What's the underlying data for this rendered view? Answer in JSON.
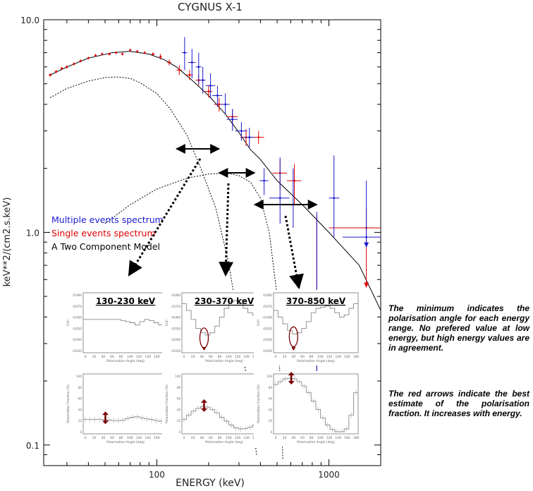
{
  "chart_data": {
    "type": "scatter",
    "title": "CYGNUS X-1",
    "xlabel": "ENERGY (keV)",
    "ylabel": "keV**2/(cm2.s.keV)",
    "xscale": "log",
    "yscale": "log",
    "xlim": [
      22,
      2000
    ],
    "ylim": [
      0.08,
      10
    ],
    "xticks": [
      {
        "value": 100,
        "label": "100"
      },
      {
        "value": 1000,
        "label": "1000"
      }
    ],
    "yticks": [
      {
        "value": 10,
        "label": "10.0"
      },
      {
        "value": 1,
        "label": "1.0"
      },
      {
        "value": 0.1,
        "label": "0.1"
      }
    ],
    "legend": [
      {
        "label": "Multiple events spectrum",
        "color": "#1a1acc"
      },
      {
        "label": "Single events spectrum",
        "color": "#dd0000"
      },
      {
        "label": "A Two Component Model",
        "color": "#000000"
      }
    ],
    "series": [
      {
        "key": "model_total",
        "kind": "line",
        "style": "solid",
        "color": "#000000",
        "x": [
          24,
          30,
          40,
          55,
          70,
          90,
          110,
          130,
          160,
          200,
          250,
          300,
          350,
          400,
          500,
          700,
          1000,
          1500,
          2000
        ],
        "y": [
          5.5,
          6.0,
          6.6,
          7.0,
          7.1,
          6.9,
          6.5,
          6.0,
          5.2,
          4.4,
          3.6,
          2.95,
          2.45,
          2.2,
          1.75,
          1.35,
          1.0,
          0.7,
          0.43
        ]
      },
      {
        "key": "model_comp_1",
        "kind": "line",
        "style": "dotted",
        "color": "#000000",
        "x": [
          24,
          30,
          40,
          50,
          60,
          70,
          80,
          100,
          120,
          150,
          180,
          220,
          260,
          300,
          340,
          380
        ],
        "y": [
          4.3,
          4.75,
          5.15,
          5.35,
          5.38,
          5.3,
          5.05,
          4.5,
          3.8,
          2.85,
          2.0,
          1.3,
          0.73,
          0.37,
          0.18,
          0.09
        ]
      },
      {
        "key": "model_comp_2",
        "kind": "line",
        "style": "dotted",
        "color": "#000000",
        "x": [
          50,
          70,
          100,
          150,
          200,
          250,
          300,
          350,
          400,
          450,
          500,
          540
        ],
        "y": [
          1.1,
          1.35,
          1.6,
          1.8,
          1.88,
          1.9,
          1.85,
          1.72,
          1.45,
          1.0,
          0.5,
          0.085
        ]
      },
      {
        "key": "single_events",
        "kind": "errorbars",
        "color": "#dd0000",
        "points": [
          {
            "x": 24,
            "y": 5.5,
            "xlo": 23.5,
            "xhi": 24.5,
            "ylo": 5.4,
            "yhi": 5.6
          },
          {
            "x": 26,
            "y": 5.7,
            "xlo": 25.5,
            "xhi": 26.5,
            "ylo": 5.6,
            "yhi": 5.8
          },
          {
            "x": 28,
            "y": 5.9,
            "xlo": 27.5,
            "xhi": 28.5,
            "ylo": 5.8,
            "yhi": 6.0
          },
          {
            "x": 30,
            "y": 6.0,
            "xlo": 29.5,
            "xhi": 30.5,
            "ylo": 5.9,
            "yhi": 6.1
          },
          {
            "x": 33,
            "y": 6.2,
            "xlo": 32.5,
            "xhi": 33.5,
            "ylo": 6.1,
            "yhi": 6.3
          },
          {
            "x": 36,
            "y": 6.4,
            "xlo": 35.5,
            "xhi": 36.5,
            "ylo": 6.3,
            "yhi": 6.5
          },
          {
            "x": 40,
            "y": 6.6,
            "xlo": 39.5,
            "xhi": 40.5,
            "ylo": 6.5,
            "yhi": 6.7
          },
          {
            "x": 44,
            "y": 6.8,
            "xlo": 43.5,
            "xhi": 44.5,
            "ylo": 6.7,
            "yhi": 6.9
          },
          {
            "x": 48,
            "y": 6.9,
            "xlo": 47.5,
            "xhi": 48.5,
            "ylo": 6.8,
            "yhi": 7.0
          },
          {
            "x": 53,
            "y": 6.9,
            "xlo": 52,
            "xhi": 54,
            "ylo": 6.8,
            "yhi": 7.0
          },
          {
            "x": 58,
            "y": 7.0,
            "xlo": 57,
            "xhi": 59,
            "ylo": 6.9,
            "yhi": 7.1
          },
          {
            "x": 63,
            "y": 6.9,
            "xlo": 62,
            "xhi": 64,
            "ylo": 6.8,
            "yhi": 7.0
          },
          {
            "x": 70,
            "y": 7.2,
            "xlo": 69,
            "xhi": 71,
            "ylo": 7.1,
            "yhi": 7.3
          },
          {
            "x": 77,
            "y": 7.1,
            "xlo": 76,
            "xhi": 78,
            "ylo": 7.0,
            "yhi": 7.2
          },
          {
            "x": 85,
            "y": 7.0,
            "xlo": 84,
            "xhi": 86,
            "ylo": 6.9,
            "yhi": 7.1
          },
          {
            "x": 95,
            "y": 6.9,
            "xlo": 93,
            "xhi": 97,
            "ylo": 6.8,
            "yhi": 7.0
          },
          {
            "x": 105,
            "y": 6.7,
            "xlo": 103,
            "xhi": 107,
            "ylo": 6.5,
            "yhi": 6.9
          },
          {
            "x": 118,
            "y": 6.3,
            "xlo": 115,
            "xhi": 121,
            "ylo": 6.1,
            "yhi": 6.5
          },
          {
            "x": 135,
            "y": 5.8,
            "xlo": 130,
            "xhi": 140,
            "ylo": 5.5,
            "yhi": 6.1
          },
          {
            "x": 155,
            "y": 5.5,
            "xlo": 148,
            "xhi": 162,
            "ylo": 5.2,
            "yhi": 5.8
          },
          {
            "x": 175,
            "y": 5.2,
            "xlo": 168,
            "xhi": 182,
            "ylo": 4.9,
            "yhi": 5.5
          },
          {
            "x": 200,
            "y": 4.6,
            "xlo": 190,
            "xhi": 210,
            "ylo": 4.3,
            "yhi": 4.9
          },
          {
            "x": 230,
            "y": 4.0,
            "xlo": 215,
            "xhi": 245,
            "ylo": 3.7,
            "yhi": 4.3
          },
          {
            "x": 275,
            "y": 3.5,
            "xlo": 255,
            "xhi": 295,
            "ylo": 3.2,
            "yhi": 3.8
          },
          {
            "x": 330,
            "y": 2.8,
            "xlo": 305,
            "xhi": 355,
            "ylo": 2.55,
            "yhi": 3.05
          },
          {
            "x": 390,
            "y": 2.8,
            "xlo": 360,
            "xhi": 420,
            "ylo": 2.6,
            "yhi": 3.0
          },
          {
            "x": 520,
            "y": 1.9,
            "xlo": 470,
            "xhi": 570,
            "ylo": 1.6,
            "yhi": 2.2
          },
          {
            "x": 630,
            "y": 1.75,
            "xlo": 570,
            "xhi": 690,
            "ylo": 1.35,
            "yhi": 2.1
          },
          {
            "x": 850,
            "y": 0.5,
            "xlo": 720,
            "xhi": 990,
            "ylo": 0.18,
            "yhi": 1.2
          },
          {
            "x": 1650,
            "y": 1.05,
            "xlo": 1000,
            "xhi": 2000,
            "ylo": 0.55,
            "yhi": 1.3,
            "arrow": true
          }
        ]
      },
      {
        "key": "multiple_events",
        "kind": "errorbars",
        "color": "#1a1acc",
        "points": [
          {
            "x": 145,
            "y": 7.0,
            "xlo": 140,
            "xhi": 150,
            "ylo": 5.8,
            "yhi": 8.3
          },
          {
            "x": 160,
            "y": 6.3,
            "xlo": 152,
            "xhi": 168,
            "ylo": 5.3,
            "yhi": 7.3
          },
          {
            "x": 175,
            "y": 6.0,
            "xlo": 168,
            "xhi": 182,
            "ylo": 5.0,
            "yhi": 7.0
          },
          {
            "x": 185,
            "y": 5.2,
            "xlo": 178,
            "xhi": 192,
            "ylo": 4.5,
            "yhi": 6.0
          },
          {
            "x": 205,
            "y": 4.9,
            "xlo": 192,
            "xhi": 218,
            "ylo": 4.3,
            "yhi": 5.6
          },
          {
            "x": 225,
            "y": 4.4,
            "xlo": 210,
            "xhi": 240,
            "ylo": 3.9,
            "yhi": 4.9
          },
          {
            "x": 250,
            "y": 4.0,
            "xlo": 235,
            "xhi": 265,
            "ylo": 3.6,
            "yhi": 4.5
          },
          {
            "x": 275,
            "y": 3.4,
            "xlo": 255,
            "xhi": 295,
            "ylo": 3.0,
            "yhi": 3.8
          },
          {
            "x": 310,
            "y": 3.0,
            "xlo": 285,
            "xhi": 335,
            "ylo": 2.7,
            "yhi": 3.3
          },
          {
            "x": 345,
            "y": 2.8,
            "xlo": 320,
            "xhi": 370,
            "ylo": 2.5,
            "yhi": 3.1
          },
          {
            "x": 420,
            "y": 1.75,
            "xlo": 395,
            "xhi": 445,
            "ylo": 1.5,
            "yhi": 2.0
          },
          {
            "x": 520,
            "y": 1.45,
            "xlo": 450,
            "xhi": 590,
            "ylo": 1.1,
            "yhi": 2.25
          },
          {
            "x": 620,
            "y": 1.35,
            "xlo": 560,
            "xhi": 690,
            "ylo": 1.05,
            "yhi": 2.0
          },
          {
            "x": 850,
            "y": 0.5,
            "xlo": 700,
            "xhi": 1000,
            "ylo": 0.17,
            "yhi": 1.25
          },
          {
            "x": 1070,
            "y": 1.45,
            "xlo": 1000,
            "xhi": 1150,
            "ylo": 0.95,
            "yhi": 2.3
          },
          {
            "x": 1650,
            "y": 0.95,
            "xlo": 1200,
            "xhi": 2000,
            "ylo": 0.85,
            "yhi": 1.75,
            "arrow": true
          }
        ]
      }
    ],
    "energy_ranges": [
      {
        "label": "130-230 keV",
        "x": [
          130,
          230
        ]
      },
      {
        "label": "230-370 keV",
        "x": [
          230,
          370
        ]
      },
      {
        "label": "370-850 keV",
        "x": [
          370,
          850
        ]
      }
    ],
    "inset_panels": [
      {
        "row": "chi2",
        "range": "130-230 keV",
        "ylabel": "Chi²",
        "xlabel": "Polarisation Angle (deg)",
        "yticks": [
          "41080",
          "41070",
          "41060",
          "41050",
          "41040",
          "41030"
        ],
        "xticks": [
          "0",
          "20",
          "40",
          "60",
          "80",
          "100",
          "120",
          "140",
          "160",
          "180"
        ],
        "values": [
          41058,
          41058,
          41058,
          41058,
          41058,
          41058,
          41058,
          41058,
          41057,
          41056,
          41055,
          41053,
          41056,
          41058,
          41057,
          41055,
          41053,
          41054
        ]
      },
      {
        "row": "chi2",
        "range": "230-370 keV",
        "ylabel": "Chi²",
        "xlabel": "Polarisation Angle (deg)",
        "yticks": [
          "41080",
          "41070",
          "41060",
          "41050",
          "41040",
          "41030"
        ],
        "xticks": [
          "0",
          "20",
          "40",
          "60",
          "80",
          "100",
          "120",
          "140",
          "160",
          "180"
        ],
        "values": [
          41072,
          41066,
          41058,
          41050,
          41046,
          41044,
          41046,
          41052,
          41060,
          41068,
          41074,
          41075,
          41072,
          41068,
          41064,
          41062,
          41065,
          41070
        ],
        "minimum_angle_deg": 45
      },
      {
        "row": "chi2",
        "range": "370-850 keV",
        "ylabel": "Chi²",
        "xlabel": "Polarisation Angle (deg)",
        "yticks": [
          "41080",
          "41070",
          "41060",
          "41050",
          "41040",
          "41030"
        ],
        "xticks": [
          "0",
          "20",
          "40",
          "60",
          "80",
          "100",
          "120",
          "140",
          "160",
          "180"
        ],
        "values": [
          41066,
          41060,
          41054,
          41048,
          41045,
          41046,
          41050,
          41056,
          41064,
          41068,
          41069,
          41070,
          41068,
          41064,
          41060,
          41062,
          41068,
          41072
        ],
        "minimum_angle_deg": 40
      },
      {
        "row": "fraction",
        "range": "130-230 keV",
        "ylabel": "Polarisation Fraction (%)",
        "xlabel": "Polarisation Angle (deg)",
        "yticks": [
          "100",
          "80",
          "60",
          "40",
          "20",
          "0"
        ],
        "xticks": [
          "0",
          "20",
          "40",
          "60",
          "80",
          "100",
          "120",
          "140",
          "160",
          "180"
        ],
        "values": [
          22,
          22,
          22,
          22,
          22,
          21,
          20,
          20,
          21,
          24,
          26,
          27,
          25,
          23,
          22,
          20,
          19,
          19
        ],
        "best_estimate": {
          "angle": 45,
          "fraction": 25
        }
      },
      {
        "row": "fraction",
        "range": "230-370 keV",
        "ylabel": "Polarisation Fraction (%)",
        "xlabel": "Polarisation Angle (deg)",
        "yticks": [
          "100",
          "80",
          "60",
          "40",
          "20",
          "0"
        ],
        "xticks": [
          "0",
          "20",
          "40",
          "60",
          "80",
          "100",
          "120",
          "140",
          "160",
          "180"
        ],
        "values": [
          22,
          30,
          37,
          42,
          45,
          44,
          40,
          34,
          26,
          19,
          12,
          7,
          5,
          6,
          8,
          12,
          17,
          20
        ],
        "best_estimate": {
          "angle": 45,
          "fraction": 47
        }
      },
      {
        "row": "fraction",
        "range": "370-850 keV",
        "ylabel": "Polarisation Fraction (%)",
        "xlabel": "Polarisation Angle (deg)",
        "yticks": [
          "100",
          "80",
          "60",
          "40",
          "20",
          "0"
        ],
        "xticks": [
          "0",
          "20",
          "40",
          "60",
          "80",
          "100",
          "120",
          "140",
          "160",
          "180"
        ],
        "values": [
          85,
          90,
          95,
          96,
          95,
          90,
          82,
          70,
          55,
          40,
          25,
          12,
          4,
          0,
          0,
          5,
          30,
          70
        ],
        "best_estimate": {
          "angle": 35,
          "fraction": 96
        }
      }
    ]
  },
  "notes": {
    "minimum": "The minimum indicates the polarisation angle for each energy range. No prefered value at low energy, but high energy values are in agreement.",
    "arrows": "The red arrows indicate the best estimate of the polarisation fraction. It increases with energy."
  },
  "colors": {
    "multiple": "#1a1acc",
    "single": "#dd0000",
    "marker": "#7a0000",
    "axes": "#000000",
    "inset_line": "#888888"
  }
}
